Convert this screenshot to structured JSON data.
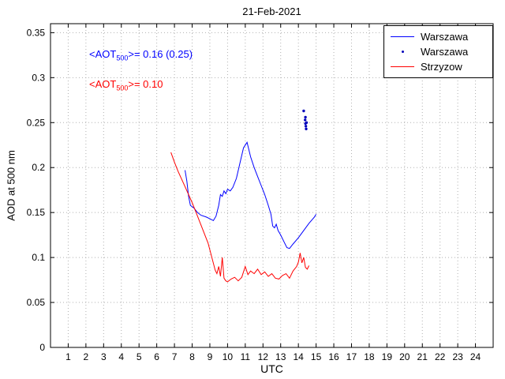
{
  "annotations": [
    {
      "prefix": "<AOT",
      "sub": "500",
      "rest": ">= 0.16 (0.25)",
      "color": "#0000ff"
    },
    {
      "prefix": "<AOT",
      "sub": "500",
      "rest": ">= 0.10",
      "color": "#ff0000"
    }
  ],
  "legend": {
    "entries": [
      {
        "label": "Warszawa",
        "marker": "line",
        "color": "#0000ff"
      },
      {
        "label": "Warszawa",
        "marker": "dot",
        "color": "#0000bb"
      },
      {
        "label": "Strzyzow",
        "marker": "line",
        "color": "#ff0000"
      }
    ]
  },
  "chart_data": {
    "type": "line",
    "title": "21-Feb-2021",
    "xlabel": "UTC",
    "ylabel": "AOD at 500 nm",
    "xlim": [
      0,
      25
    ],
    "ylim": [
      0,
      0.36
    ],
    "grid": true,
    "legend_position": "top-right",
    "xticks": [
      1,
      2,
      3,
      4,
      5,
      6,
      7,
      8,
      9,
      10,
      11,
      12,
      13,
      14,
      15,
      16,
      17,
      18,
      19,
      20,
      21,
      22,
      23,
      24
    ],
    "xtick_labels": [
      "1",
      "2",
      "3",
      "4",
      "5",
      "6",
      "7",
      "8",
      "9",
      "10",
      "11",
      "12",
      "13",
      "14",
      "15",
      "16",
      "17",
      "18",
      "19",
      "20",
      "21",
      "22",
      "23",
      "24"
    ],
    "yticks": [
      0,
      0.05,
      0.1,
      0.15,
      0.2,
      0.25,
      0.3,
      0.35
    ],
    "ytick_labels": [
      "0",
      "0.05",
      "0.1",
      "0.15",
      "0.2",
      "0.25",
      "0.3",
      "0.35"
    ],
    "series": [
      {
        "name": "Warszawa",
        "type": "line",
        "color": "#0000ff",
        "mean_label": "0.16 (0.25)",
        "x": [
          7.6,
          7.7,
          7.8,
          7.9,
          8.1,
          8.3,
          8.5,
          8.8,
          9.0,
          9.2,
          9.35,
          9.5,
          9.6,
          9.7,
          9.8,
          9.9,
          10.0,
          10.15,
          10.3,
          10.5,
          10.7,
          10.9,
          11.1,
          11.3,
          11.5,
          11.7,
          11.9,
          12.1,
          12.3,
          12.45,
          12.55,
          12.65,
          12.75,
          12.85,
          13.0,
          13.2,
          13.35,
          13.5,
          13.7,
          14.0,
          14.3,
          14.6,
          14.9,
          15.0
        ],
        "y": [
          0.197,
          0.185,
          0.168,
          0.158,
          0.155,
          0.15,
          0.147,
          0.145,
          0.143,
          0.141,
          0.146,
          0.158,
          0.17,
          0.168,
          0.174,
          0.171,
          0.176,
          0.174,
          0.178,
          0.188,
          0.205,
          0.222,
          0.228,
          0.212,
          0.2,
          0.19,
          0.18,
          0.17,
          0.158,
          0.148,
          0.135,
          0.133,
          0.137,
          0.13,
          0.125,
          0.117,
          0.111,
          0.11,
          0.115,
          0.122,
          0.13,
          0.138,
          0.145,
          0.148
        ]
      },
      {
        "name": "Warszawa",
        "type": "scatter",
        "color": "#0000bb",
        "x": [
          14.3,
          14.38,
          14.4,
          14.42,
          14.44,
          14.4,
          14.46
        ],
        "y": [
          0.263,
          0.253,
          0.249,
          0.246,
          0.243,
          0.256,
          0.25
        ]
      },
      {
        "name": "Strzyzow",
        "type": "line",
        "color": "#ff0000",
        "mean_label": "0.10",
        "x": [
          6.8,
          7.0,
          7.2,
          7.5,
          7.8,
          8.0,
          8.3,
          8.6,
          8.9,
          9.1,
          9.3,
          9.4,
          9.5,
          9.6,
          9.7,
          9.8,
          9.9,
          10.0,
          10.2,
          10.4,
          10.6,
          10.8,
          11.0,
          11.15,
          11.3,
          11.5,
          11.7,
          11.9,
          12.1,
          12.3,
          12.5,
          12.7,
          12.9,
          13.1,
          13.3,
          13.5,
          13.7,
          13.9,
          14.0,
          14.1,
          14.2,
          14.3,
          14.4,
          14.5,
          14.6
        ],
        "y": [
          0.217,
          0.206,
          0.196,
          0.183,
          0.17,
          0.161,
          0.146,
          0.131,
          0.116,
          0.101,
          0.086,
          0.082,
          0.09,
          0.079,
          0.1,
          0.077,
          0.074,
          0.073,
          0.076,
          0.078,
          0.074,
          0.078,
          0.09,
          0.081,
          0.085,
          0.082,
          0.087,
          0.081,
          0.084,
          0.079,
          0.082,
          0.077,
          0.076,
          0.08,
          0.082,
          0.077,
          0.085,
          0.09,
          0.095,
          0.105,
          0.094,
          0.1,
          0.089,
          0.087,
          0.091
        ]
      }
    ]
  }
}
